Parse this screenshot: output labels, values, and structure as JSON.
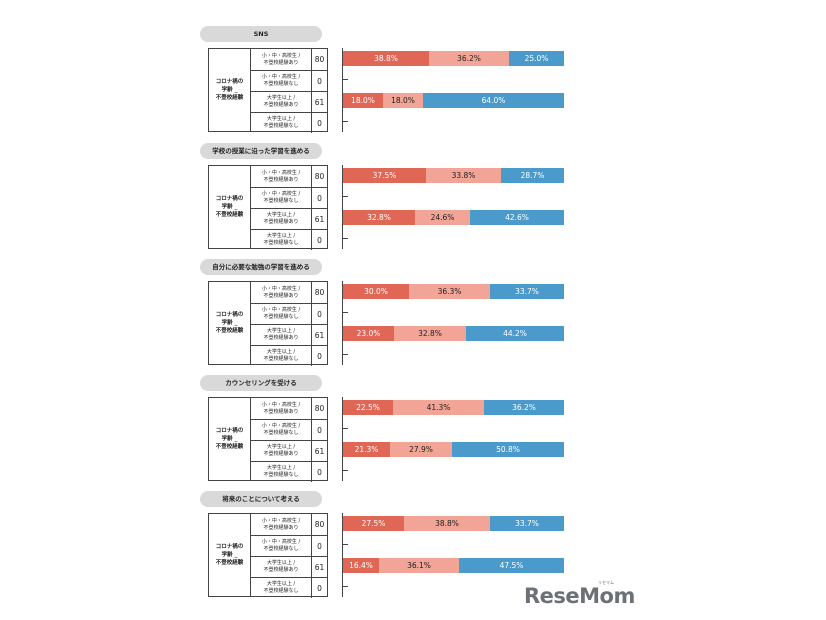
{
  "logo": {
    "text": "ReseMom",
    "small_text": "リセマム"
  },
  "colors": {
    "s1": "#e06655",
    "s2": "#f2a596",
    "s3": "#4a9acb"
  },
  "group_label": "コロナ禍の\n学齢 _\n不登校経験",
  "row_labels": [
    "小・中・高校生 /\n不登校経験あり",
    "小・中・高校生 /\n不登校経験なし",
    "大学生以上 /\n不登校経験あり",
    "大学生以上 /\n不登校経験なし"
  ],
  "chart_data": [
    {
      "type": "bar",
      "title": "SNS",
      "rows": [
        {
          "n": "80",
          "values": [
            38.8,
            36.2,
            25.0
          ],
          "labels": [
            "38.8%",
            "36.2%",
            "25.0%"
          ]
        },
        {
          "n": "0",
          "values": [],
          "labels": []
        },
        {
          "n": "61",
          "values": [
            18.0,
            18.0,
            64.0
          ],
          "labels": [
            "18.0%",
            "18.0%",
            "64.0%"
          ]
        },
        {
          "n": "0",
          "values": [],
          "labels": []
        }
      ]
    },
    {
      "type": "bar",
      "title": "学校の授業に沿った学習を進める",
      "rows": [
        {
          "n": "80",
          "values": [
            37.5,
            33.8,
            28.7
          ],
          "labels": [
            "37.5%",
            "33.8%",
            "28.7%"
          ]
        },
        {
          "n": "0",
          "values": [],
          "labels": []
        },
        {
          "n": "61",
          "values": [
            32.8,
            24.6,
            42.6
          ],
          "labels": [
            "32.8%",
            "24.6%",
            "42.6%"
          ]
        },
        {
          "n": "0",
          "values": [],
          "labels": []
        }
      ]
    },
    {
      "type": "bar",
      "title": "自分に必要な勉強の学習を進める",
      "rows": [
        {
          "n": "80",
          "values": [
            30.0,
            36.3,
            33.7
          ],
          "labels": [
            "30.0%",
            "36.3%",
            "33.7%"
          ]
        },
        {
          "n": "0",
          "values": [],
          "labels": []
        },
        {
          "n": "61",
          "values": [
            23.0,
            32.8,
            44.2
          ],
          "labels": [
            "23.0%",
            "32.8%",
            "44.2%"
          ]
        },
        {
          "n": "0",
          "values": [],
          "labels": []
        }
      ]
    },
    {
      "type": "bar",
      "title": "カウンセリングを受ける",
      "rows": [
        {
          "n": "80",
          "values": [
            22.5,
            41.3,
            36.2
          ],
          "labels": [
            "22.5%",
            "41.3%",
            "36.2%"
          ]
        },
        {
          "n": "0",
          "values": [],
          "labels": []
        },
        {
          "n": "61",
          "values": [
            21.3,
            27.9,
            50.8
          ],
          "labels": [
            "21.3%",
            "27.9%",
            "50.8%"
          ]
        },
        {
          "n": "0",
          "values": [],
          "labels": []
        }
      ]
    },
    {
      "type": "bar",
      "title": "将来のことについて考える",
      "rows": [
        {
          "n": "80",
          "values": [
            27.5,
            38.8,
            33.7
          ],
          "labels": [
            "27.5%",
            "38.8%",
            "33.7%"
          ]
        },
        {
          "n": "0",
          "values": [],
          "labels": []
        },
        {
          "n": "61",
          "values": [
            16.4,
            36.1,
            47.5
          ],
          "labels": [
            "16.4%",
            "36.1%",
            "47.5%"
          ]
        },
        {
          "n": "0",
          "values": [],
          "labels": []
        }
      ]
    }
  ]
}
